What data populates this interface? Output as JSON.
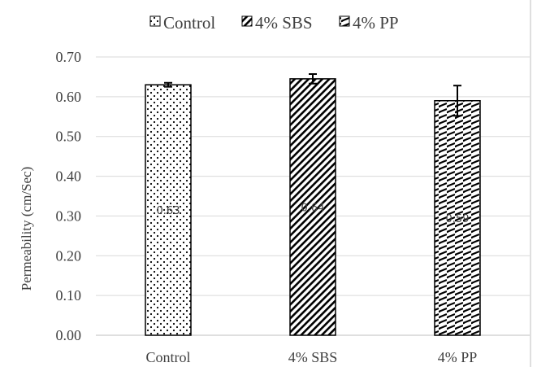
{
  "chart_data": {
    "type": "bar",
    "title": "",
    "xlabel": "",
    "ylabel": "Permeability  (cm/Sec)",
    "ylim": [
      0,
      0.7
    ],
    "yticks": [
      "0.00",
      "0.10",
      "0.20",
      "0.30",
      "0.40",
      "0.50",
      "0.60",
      "0.70"
    ],
    "grid": true,
    "legend_position": "top",
    "categories": [
      "Control",
      "4% SBS",
      "4% PP"
    ],
    "values": [
      0.63,
      0.645,
      0.59
    ],
    "data_labels": [
      "0.63",
      "0.64",
      "0.59"
    ],
    "error": [
      0.005,
      0.012,
      0.038
    ],
    "legend": [
      "Control",
      "4% SBS",
      "4% PP"
    ],
    "patterns": [
      "dots",
      "diagonal-stripes",
      "horizontal-dashes"
    ],
    "colors": {
      "grid": "#d9d9d9",
      "bar_fill": "#ffffff",
      "bar_pattern": "#000000",
      "bar_edge": "#000000",
      "text": "#404040",
      "frame": "#bfbfbf"
    }
  }
}
